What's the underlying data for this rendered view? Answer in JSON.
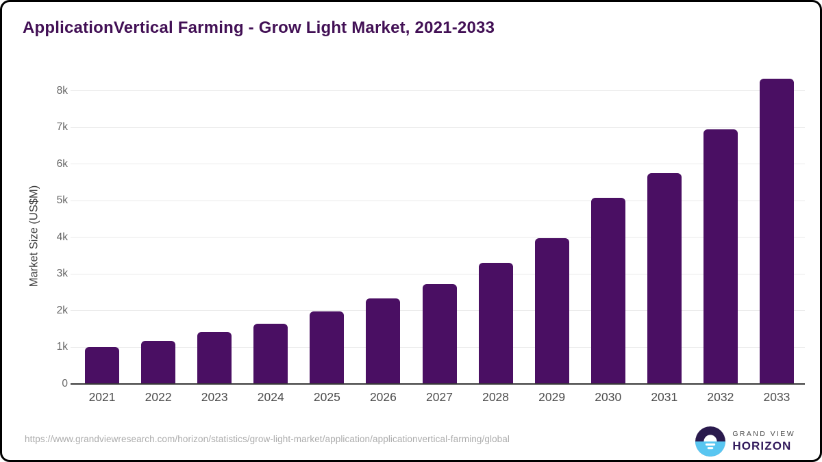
{
  "title": "ApplicationVertical Farming - Grow Light Market, 2021-2033",
  "chart_data": {
    "type": "bar",
    "title": "ApplicationVertical Farming - Grow Light Market, 2021-2033",
    "categories": [
      "2021",
      "2022",
      "2023",
      "2024",
      "2025",
      "2026",
      "2027",
      "2028",
      "2029",
      "2030",
      "2031",
      "2032",
      "2033"
    ],
    "values": [
      1015,
      1185,
      1415,
      1650,
      1975,
      2325,
      2735,
      3300,
      3975,
      5080,
      5760,
      6940,
      8335
    ],
    "xlabel": "",
    "ylabel": "Market Size (US$M)",
    "ylim": [
      0,
      8600
    ],
    "yticks": [
      {
        "label": "0",
        "value": 0
      },
      {
        "label": "1k",
        "value": 1000
      },
      {
        "label": "2k",
        "value": 2000
      },
      {
        "label": "3k",
        "value": 3000
      },
      {
        "label": "4k",
        "value": 4000
      },
      {
        "label": "5k",
        "value": 5000
      },
      {
        "label": "6k",
        "value": 6000
      },
      {
        "label": "7k",
        "value": 7000
      },
      {
        "label": "8k",
        "value": 8000
      }
    ],
    "grid": "horizontal-light",
    "legend_position": "none",
    "bar_color": "#4a0f63"
  },
  "colors": {
    "bar": "#4a0f63",
    "title_text": "#421055",
    "gridline": "#e9e9e9",
    "axis_line": "#383838",
    "tick_text": "#666666",
    "brand_purple": "#321a5c",
    "brand_blue": "#59c6f1",
    "brand_dark": "#2a1a4d"
  },
  "footer": {
    "source_url": "https://www.grandviewresearch.com/horizon/statistics/grow-light-market/application/applicationvertical-farming/global",
    "brand_line1": "GRAND VIEW",
    "brand_line2": "HORIZON"
  }
}
